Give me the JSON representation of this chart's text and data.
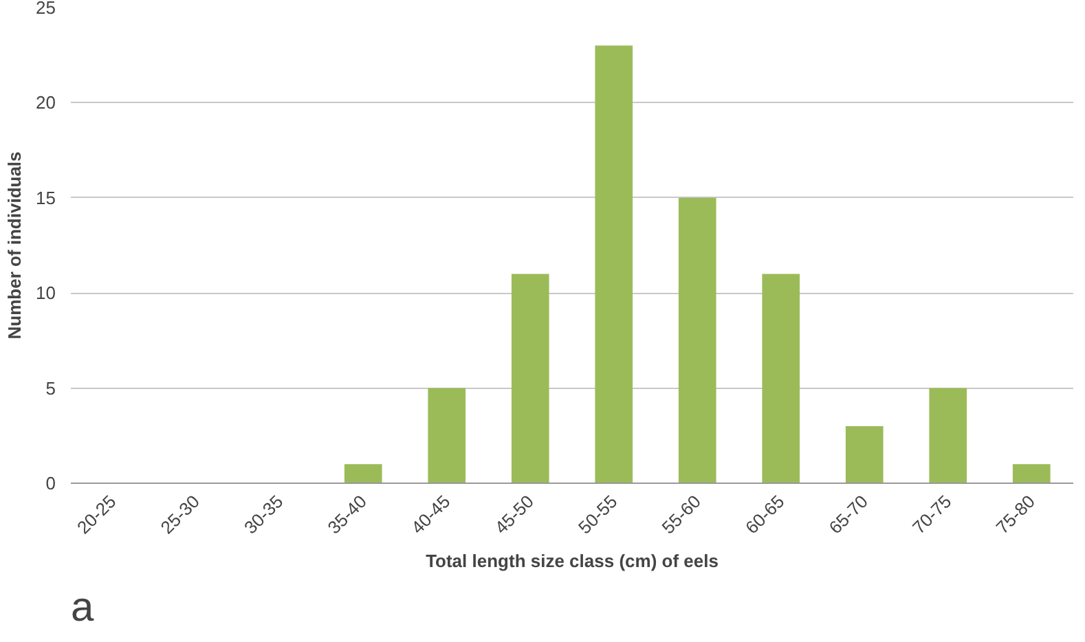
{
  "chart_data": {
    "type": "bar",
    "xlabel": "Total length size class (cm) of eels",
    "ylabel": "Number of individuals",
    "categories": [
      "20-25",
      "25-30",
      "30-35",
      "35-40",
      "40-45",
      "45-50",
      "50-55",
      "55-60",
      "60-65",
      "65-70",
      "70-75",
      "75-80"
    ],
    "values": [
      0,
      0,
      0,
      1,
      5,
      11,
      23,
      15,
      11,
      3,
      5,
      1
    ],
    "color": "#9bbb59",
    "ylim": [
      0,
      25
    ],
    "yticks": [
      0,
      5,
      10,
      15,
      20,
      25
    ],
    "grid": "y",
    "annotations": [
      "a"
    ]
  }
}
